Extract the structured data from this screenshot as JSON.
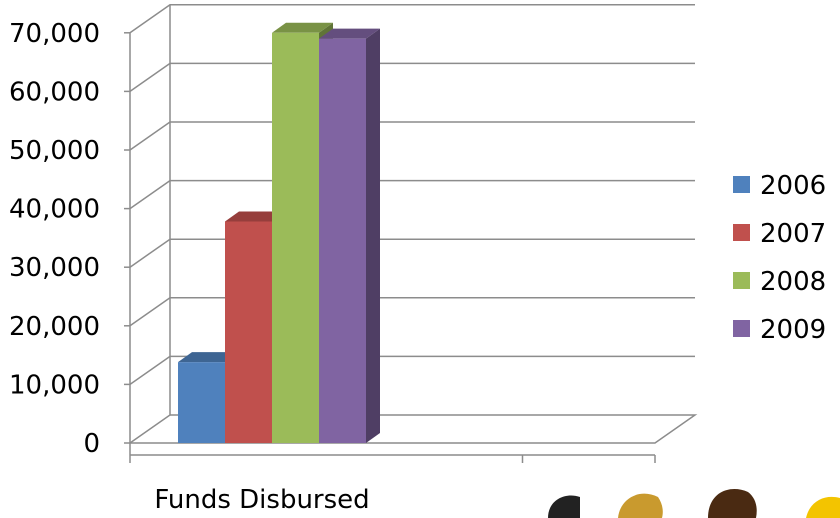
{
  "chart_data": {
    "type": "bar",
    "categories": [
      "Funds Disbursed"
    ],
    "series": [
      {
        "name": "2006",
        "values": [
          13800
        ],
        "color": "#4f81bd"
      },
      {
        "name": "2007",
        "values": [
          37800
        ],
        "color": "#c0504d"
      },
      {
        "name": "2008",
        "values": [
          70000
        ],
        "color": "#9bbb59"
      },
      {
        "name": "2009",
        "values": [
          69000
        ],
        "color": "#8064a2"
      }
    ],
    "ylim": [
      0,
      70000
    ],
    "yticks": [
      0,
      10000,
      20000,
      30000,
      40000,
      50000,
      60000,
      70000
    ],
    "ytick_labels": [
      "0",
      "10,000",
      "20,000",
      "30,000",
      "40,000",
      "50,000",
      "60,000",
      "70,000"
    ],
    "grid": true,
    "style": "3d-clustered-column",
    "legend_position": "right"
  }
}
